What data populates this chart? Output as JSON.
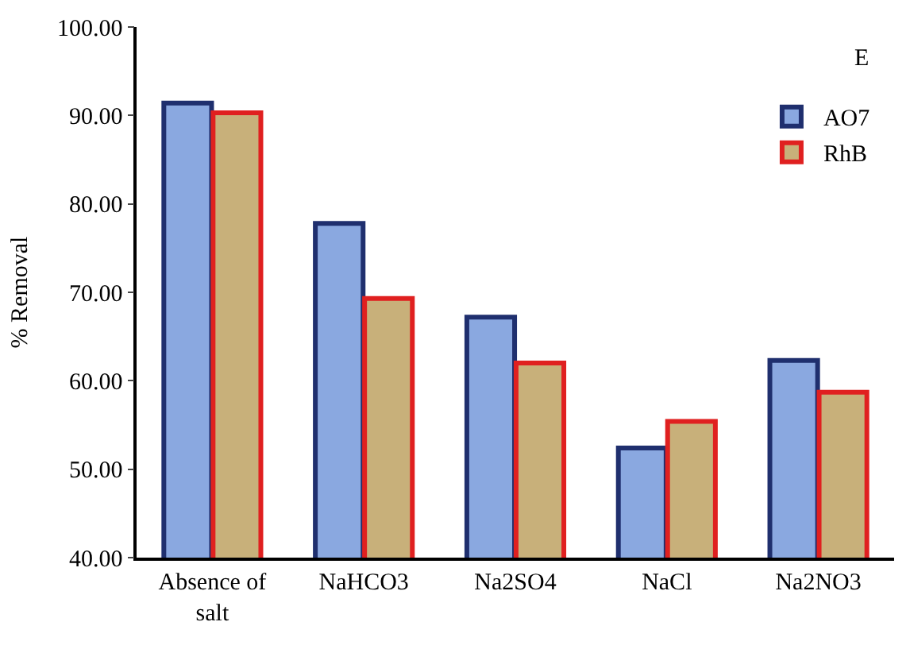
{
  "chart_data": {
    "type": "bar",
    "ylabel": "% Removal",
    "categories": [
      "Absence of salt",
      "NaHCO3",
      "Na2SO4",
      "NaCl",
      "Na2NO3"
    ],
    "series": [
      {
        "name": "AO7",
        "color": "#8aa8e0",
        "values": [
          91.4,
          77.8,
          67.2,
          52.4,
          62.3
        ]
      },
      {
        "name": "RhB",
        "color": "#c8b07a",
        "values": [
          90.3,
          69.3,
          62.0,
          55.4,
          58.7
        ]
      }
    ],
    "ylim": [
      40,
      100
    ],
    "yticks": [
      {
        "value": 40,
        "label": "40.00"
      },
      {
        "value": 50,
        "label": "50.00"
      },
      {
        "value": 60,
        "label": "60.00"
      },
      {
        "value": 70,
        "label": "70.00"
      },
      {
        "value": 80,
        "label": "80.00"
      },
      {
        "value": 90,
        "label": "90.00"
      },
      {
        "value": 100,
        "label": "100.00"
      }
    ],
    "annotations": [
      "E"
    ],
    "legend": "top right"
  }
}
